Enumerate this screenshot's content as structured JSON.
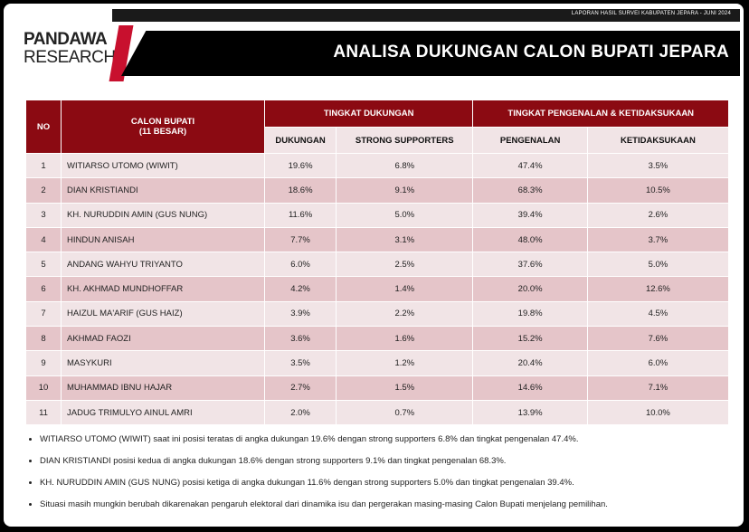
{
  "header": {
    "report_label": "LAPORAN HASIL SURVEI KABUPATEN JEPARA - JUNI 2024",
    "title": "ANALISA DUKUNGAN CALON BUPATI JEPARA",
    "logo_line1": "PANDAWA",
    "logo_line2": "RESEARCH"
  },
  "table": {
    "col_no": "NO",
    "col_name": "CALON BUPATI",
    "col_name_sub": "(11 BESAR)",
    "group1": "TINGKAT DUKUNGAN",
    "group2": "TINGKAT PENGENALAN & KETIDAKSUKAAN",
    "sub_dukungan": "DUKUNGAN",
    "sub_strong": "STRONG SUPPORTERS",
    "sub_pengenalan": "PENGENALAN",
    "sub_ketidaksukaan": "KETIDAKSUKAAN",
    "rows": [
      {
        "no": "1",
        "name": "WITIARSO UTOMO (WIWIT)",
        "dukungan": "19.6%",
        "strong": "6.8%",
        "pengenalan": "47.4%",
        "ketidaksukaan": "3.5%"
      },
      {
        "no": "2",
        "name": "DIAN KRISTIANDI",
        "dukungan": "18.6%",
        "strong": "9.1%",
        "pengenalan": "68.3%",
        "ketidaksukaan": "10.5%"
      },
      {
        "no": "3",
        "name": "KH. NURUDDIN AMIN (GUS NUNG)",
        "dukungan": "11.6%",
        "strong": "5.0%",
        "pengenalan": "39.4%",
        "ketidaksukaan": "2.6%"
      },
      {
        "no": "4",
        "name": "HINDUN ANISAH",
        "dukungan": "7.7%",
        "strong": "3.1%",
        "pengenalan": "48.0%",
        "ketidaksukaan": "3.7%"
      },
      {
        "no": "5",
        "name": "ANDANG WAHYU TRIYANTO",
        "dukungan": "6.0%",
        "strong": "2.5%",
        "pengenalan": "37.6%",
        "ketidaksukaan": "5.0%"
      },
      {
        "no": "6",
        "name": "KH. AKHMAD MUNDHOFFAR",
        "dukungan": "4.2%",
        "strong": "1.4%",
        "pengenalan": "20.0%",
        "ketidaksukaan": "12.6%"
      },
      {
        "no": "7",
        "name": "HAIZUL MA'ARIF (GUS HAIZ)",
        "dukungan": "3.9%",
        "strong": "2.2%",
        "pengenalan": "19.8%",
        "ketidaksukaan": "4.5%"
      },
      {
        "no": "8",
        "name": "AKHMAD FAOZI",
        "dukungan": "3.6%",
        "strong": "1.6%",
        "pengenalan": "15.2%",
        "ketidaksukaan": "7.6%"
      },
      {
        "no": "9",
        "name": "MASYKURI",
        "dukungan": "3.5%",
        "strong": "1.2%",
        "pengenalan": "20.4%",
        "ketidaksukaan": "6.0%"
      },
      {
        "no": "10",
        "name": "MUHAMMAD IBNU HAJAR",
        "dukungan": "2.7%",
        "strong": "1.5%",
        "pengenalan": "14.6%",
        "ketidaksukaan": "7.1%"
      },
      {
        "no": "11",
        "name": "JADUG TRIMULYO AINUL AMRI",
        "dukungan": "2.0%",
        "strong": "0.7%",
        "pengenalan": "13.9%",
        "ketidaksukaan": "10.0%"
      }
    ]
  },
  "notes": [
    "WITIARSO UTOMO (WIWIT) saat ini posisi teratas di angka dukungan 19.6% dengan strong supporters 6.8% dan tingkat pengenalan 47.4%.",
    "DIAN KRISTIANDI posisi kedua di angka dukungan 18.6% dengan strong supporters 9.1% dan tingkat pengenalan 68.3%.",
    "KH. NURUDDIN AMIN (GUS NUNG) posisi ketiga di angka dukungan 11.6% dengan strong supporters 5.0% dan tingkat pengenalan 39.4%.",
    "Situasi masih mungkin berubah dikarenakan pengaruh elektoral dari dinamika isu dan pergerakan masing-masing Calon Bupati menjelang pemilihan."
  ],
  "colors": {
    "header_red": "#8b0a12",
    "accent_red": "#c8102e",
    "row_light": "#f1e4e6",
    "row_dark": "#e5c5c9"
  }
}
